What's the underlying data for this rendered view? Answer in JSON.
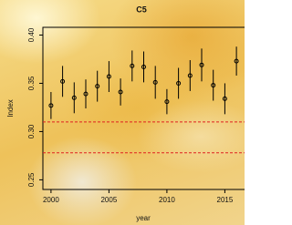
{
  "chart_data": {
    "type": "errorbar",
    "title": "C5",
    "xlabel": "year",
    "ylabel": "Index",
    "x": [
      2000,
      2001,
      2002,
      2003,
      2004,
      2005,
      2006,
      2007,
      2008,
      2009,
      2010,
      2011,
      2012,
      2013,
      2014,
      2015,
      2016
    ],
    "values": [
      0.327,
      0.352,
      0.335,
      0.339,
      0.347,
      0.357,
      0.341,
      0.368,
      0.367,
      0.351,
      0.331,
      0.35,
      0.358,
      0.369,
      0.348,
      0.334,
      0.373
    ],
    "errors": [
      0.014,
      0.016,
      0.016,
      0.015,
      0.016,
      0.016,
      0.014,
      0.016,
      0.016,
      0.017,
      0.013,
      0.016,
      0.016,
      0.017,
      0.016,
      0.016,
      0.015
    ],
    "color": "#000000",
    "reference_lines": [
      0.31,
      0.278
    ],
    "reference_color": "#e02020",
    "xlim": [
      1999.3,
      2016.7
    ],
    "ylim": [
      0.24,
      0.408
    ],
    "xticks": [
      2000,
      2005,
      2010,
      2015
    ],
    "yticks": [
      {
        "value": 0.25,
        "label": "0.25"
      },
      {
        "value": 0.3,
        "label": "0.30"
      },
      {
        "value": 0.35,
        "label": "0.35"
      },
      {
        "value": 0.4,
        "label": "0.40"
      }
    ]
  }
}
